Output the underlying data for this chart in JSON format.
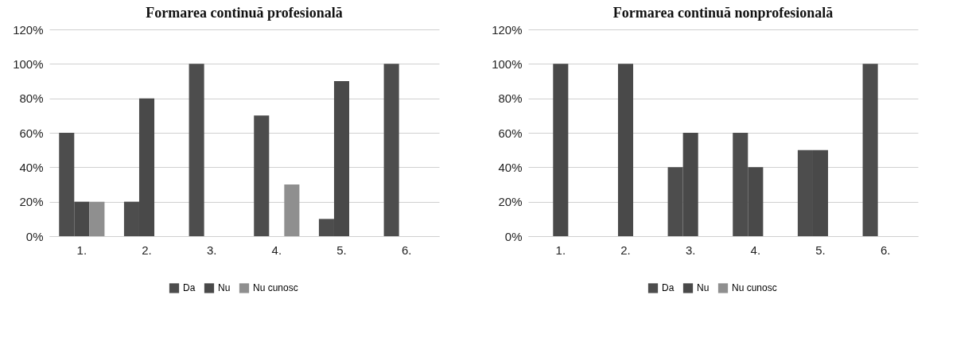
{
  "chart_data": [
    {
      "type": "bar",
      "title": "Formarea continuă profesională",
      "categories": [
        "1.",
        "2.",
        "3.",
        "4.",
        "5.",
        "6."
      ],
      "series": [
        {
          "name": "Da",
          "color": "#4d4d4d",
          "values": [
            60,
            20,
            100,
            70,
            10,
            100
          ]
        },
        {
          "name": "Nu",
          "color": "#494949",
          "values": [
            20,
            80,
            null,
            null,
            90,
            null
          ]
        },
        {
          "name": "Nu cunosc",
          "color": "#8f8f8f",
          "values": [
            20,
            null,
            null,
            30,
            null,
            null
          ]
        }
      ],
      "ylim": [
        0,
        120
      ],
      "yticks": [
        {
          "value": 0,
          "label": "0%"
        },
        {
          "value": 20,
          "label": "20%"
        },
        {
          "value": 40,
          "label": "40%"
        },
        {
          "value": 60,
          "label": "60%"
        },
        {
          "value": 80,
          "label": "80%"
        },
        {
          "value": 100,
          "label": "100%"
        },
        {
          "value": 120,
          "label": "120%"
        }
      ],
      "grid": "y",
      "legend": "bottom"
    },
    {
      "type": "bar",
      "title": "Formarea continuă nonprofesională",
      "categories": [
        "1.",
        "2.",
        "3.",
        "4.",
        "5.",
        "6."
      ],
      "series": [
        {
          "name": "Da",
          "color": "#4d4d4d",
          "values": [
            null,
            null,
            40,
            60,
            50,
            100
          ]
        },
        {
          "name": "Nu",
          "color": "#494949",
          "values": [
            100,
            100,
            60,
            40,
            50,
            null
          ]
        },
        {
          "name": "Nu cunosc",
          "color": "#8f8f8f",
          "values": [
            null,
            null,
            null,
            null,
            null,
            null
          ]
        }
      ],
      "ylim": [
        0,
        120
      ],
      "yticks": [
        {
          "value": 0,
          "label": "0%"
        },
        {
          "value": 20,
          "label": "20%"
        },
        {
          "value": 40,
          "label": "40%"
        },
        {
          "value": 60,
          "label": "60%"
        },
        {
          "value": 80,
          "label": "80%"
        },
        {
          "value": 100,
          "label": "100%"
        },
        {
          "value": 120,
          "label": "120%"
        }
      ],
      "grid": "y",
      "legend": "bottom"
    }
  ]
}
